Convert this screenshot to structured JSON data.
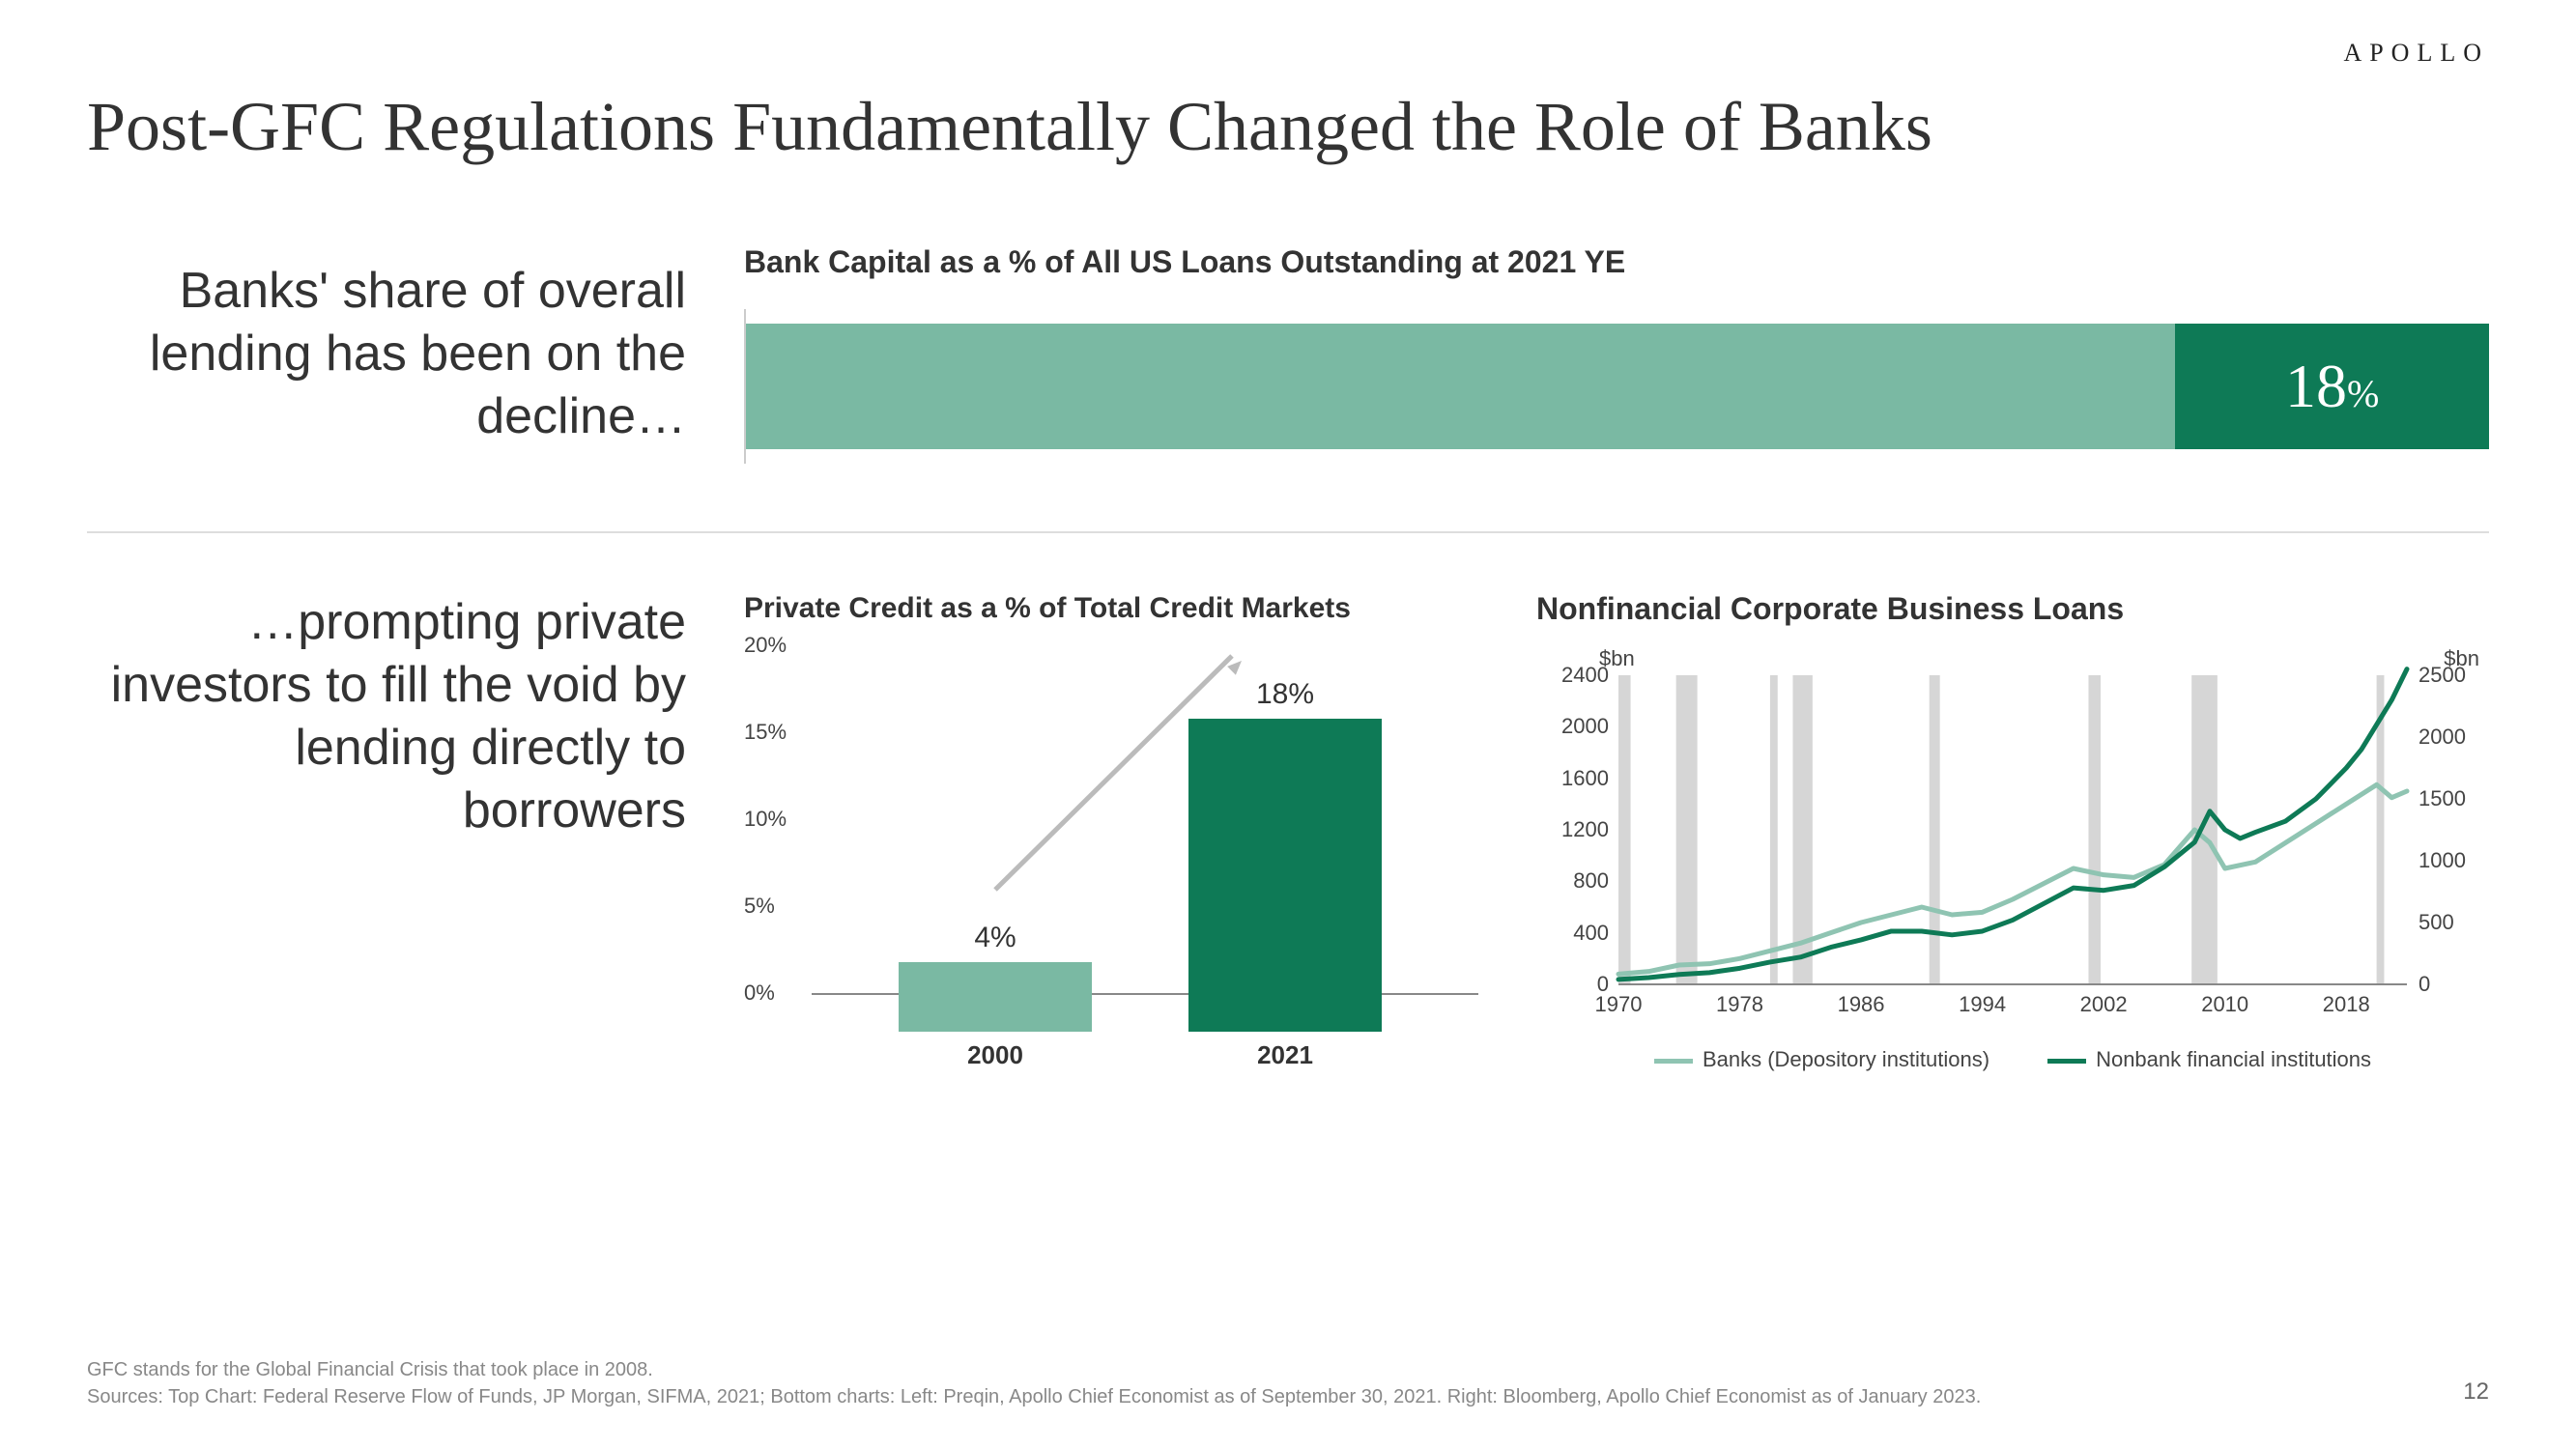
{
  "brand": "APOLLO",
  "page_number": "12",
  "title": "Post-GFC Regulations Fundamentally Changed the Role of Banks",
  "section1": {
    "sidetext": "Banks' share of overall lending has been on the decline…",
    "chart": {
      "type": "stacked-horizontal-bar",
      "title": "Bank Capital as a % of All US Loans Outstanding at 2021 YE",
      "seg1_pct": 82,
      "seg2_pct": 18,
      "seg1_color": "#7ab9a3",
      "seg2_color": "#0e7a56",
      "label": "18",
      "label_suffix": "%",
      "label_color": "#ffffff"
    }
  },
  "section2": {
    "sidetext": "…prompting private investors to fill the void by lending directly to borrowers",
    "barchart": {
      "type": "bar",
      "title": "Private Credit as a % of Total Credit Markets",
      "categories": [
        "2000",
        "2021"
      ],
      "values": [
        4,
        18
      ],
      "value_labels": [
        "4%",
        "18%"
      ],
      "bar_colors": [
        "#7ab9a3",
        "#0e7a56"
      ],
      "ylim": [
        0,
        20
      ],
      "yticks": [
        0,
        5,
        10,
        15,
        20
      ],
      "ytick_labels": [
        "0%",
        "5%",
        "10%",
        "15%",
        "20%"
      ],
      "axis_color": "#888888",
      "arrow_color": "#bbbbbb"
    },
    "linechart": {
      "type": "line",
      "title": "Nonfinancial Corporate Business Loans",
      "unit_left": "$bn",
      "unit_right": "$bn",
      "x_range": [
        1970,
        2022
      ],
      "y_left": {
        "min": 0,
        "max": 2400,
        "ticks": [
          0,
          400,
          800,
          1200,
          1600,
          2000,
          2400
        ]
      },
      "y_right": {
        "min": 0,
        "max": 2500,
        "ticks": [
          0,
          500,
          1000,
          1500,
          2000,
          2500
        ]
      },
      "x_ticks": [
        1970,
        1978,
        1986,
        1994,
        2002,
        2010,
        2018
      ],
      "recession_bands": [
        [
          1970,
          1970.8
        ],
        [
          1973.8,
          1975.2
        ],
        [
          1980,
          1980.5
        ],
        [
          1981.5,
          1982.8
        ],
        [
          1990.5,
          1991.2
        ],
        [
          2001,
          2001.8
        ],
        [
          2007.8,
          2009.5
        ],
        [
          2020,
          2020.5
        ]
      ],
      "recession_color": "#d6d6d6",
      "series": [
        {
          "name": "Banks (Depository institutions)",
          "color": "#8fc4b2",
          "width": 5,
          "axis": "left",
          "points": [
            [
              1970,
              80
            ],
            [
              1972,
              100
            ],
            [
              1974,
              150
            ],
            [
              1976,
              160
            ],
            [
              1978,
              200
            ],
            [
              1980,
              260
            ],
            [
              1982,
              320
            ],
            [
              1984,
              400
            ],
            [
              1986,
              480
            ],
            [
              1988,
              540
            ],
            [
              1990,
              600
            ],
            [
              1992,
              540
            ],
            [
              1994,
              560
            ],
            [
              1996,
              660
            ],
            [
              1998,
              780
            ],
            [
              2000,
              900
            ],
            [
              2002,
              850
            ],
            [
              2004,
              830
            ],
            [
              2006,
              930
            ],
            [
              2008,
              1200
            ],
            [
              2009,
              1100
            ],
            [
              2010,
              900
            ],
            [
              2012,
              950
            ],
            [
              2014,
              1100
            ],
            [
              2016,
              1250
            ],
            [
              2018,
              1400
            ],
            [
              2020,
              1550
            ],
            [
              2021,
              1450
            ],
            [
              2022,
              1500
            ]
          ]
        },
        {
          "name": "Nonbank financial institutions",
          "color": "#0e7a56",
          "width": 5,
          "axis": "right",
          "points": [
            [
              1970,
              40
            ],
            [
              1972,
              55
            ],
            [
              1974,
              80
            ],
            [
              1976,
              95
            ],
            [
              1978,
              130
            ],
            [
              1980,
              180
            ],
            [
              1982,
              220
            ],
            [
              1984,
              300
            ],
            [
              1986,
              360
            ],
            [
              1988,
              430
            ],
            [
              1990,
              430
            ],
            [
              1992,
              400
            ],
            [
              1994,
              430
            ],
            [
              1996,
              520
            ],
            [
              1998,
              650
            ],
            [
              2000,
              780
            ],
            [
              2002,
              760
            ],
            [
              2004,
              800
            ],
            [
              2006,
              950
            ],
            [
              2008,
              1150
            ],
            [
              2009,
              1400
            ],
            [
              2010,
              1250
            ],
            [
              2011,
              1180
            ],
            [
              2012,
              1230
            ],
            [
              2014,
              1320
            ],
            [
              2016,
              1500
            ],
            [
              2018,
              1750
            ],
            [
              2019,
              1900
            ],
            [
              2020,
              2100
            ],
            [
              2021,
              2300
            ],
            [
              2022,
              2550
            ]
          ]
        }
      ],
      "legend": [
        "Banks (Depository institutions)",
        "Nonbank financial institutions"
      ]
    }
  },
  "footnote_line1": "GFC stands for the Global Financial Crisis that took place in 2008.",
  "footnote_line2": "Sources: Top Chart: Federal Reserve Flow of Funds, JP Morgan, SIFMA, 2021; Bottom charts: Left: Preqin, Apollo Chief Economist as of September 30, 2021. Right: Bloomberg, Apollo Chief Economist as of January 2023."
}
